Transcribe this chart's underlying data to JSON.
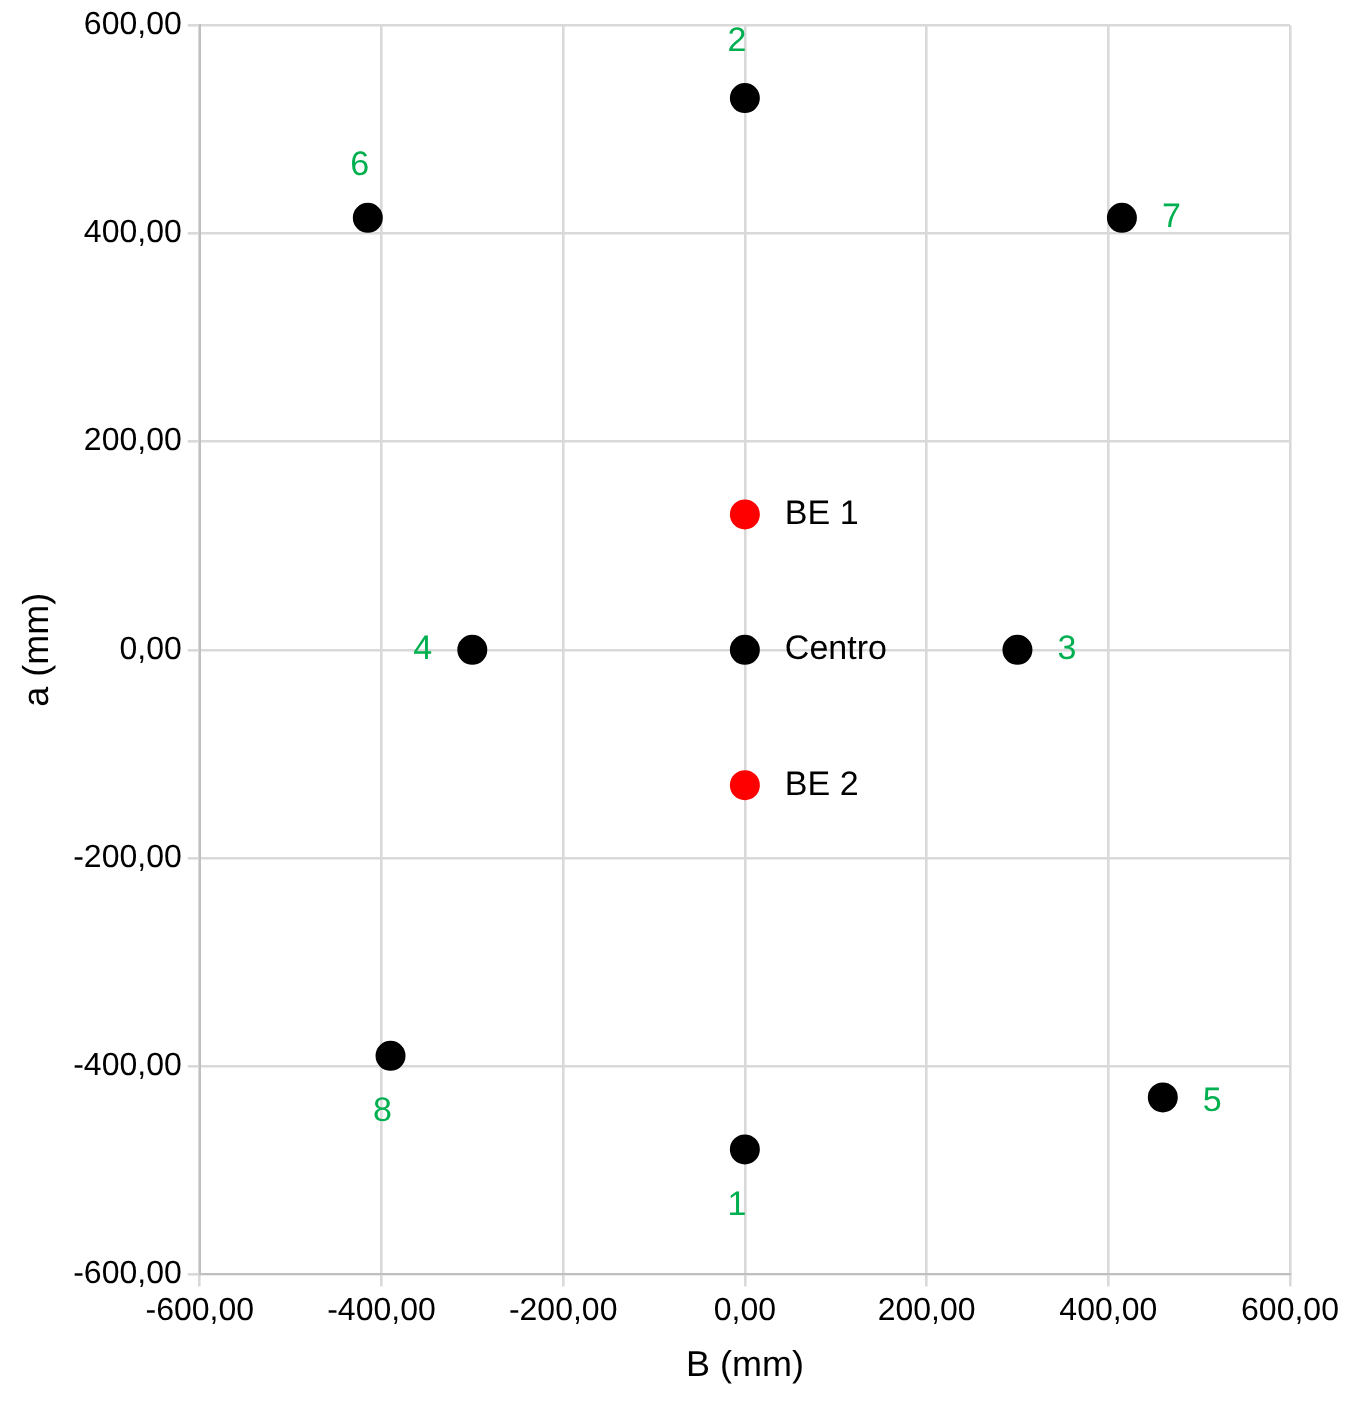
{
  "chart_data": {
    "type": "scatter",
    "xlabel": "B (mm)",
    "ylabel": "a (mm)",
    "xlim": [
      -600,
      600
    ],
    "ylim": [
      -600,
      600
    ],
    "xticks": [
      {
        "value": -600,
        "label": "-600,00"
      },
      {
        "value": -400,
        "label": "-400,00"
      },
      {
        "value": -200,
        "label": "-200,00"
      },
      {
        "value": 0,
        "label": "0,00"
      },
      {
        "value": 200,
        "label": "200,00"
      },
      {
        "value": 400,
        "label": "400,00"
      },
      {
        "value": 600,
        "label": "600,00"
      }
    ],
    "yticks": [
      {
        "value": -600,
        "label": "-600,00"
      },
      {
        "value": -400,
        "label": "-400,00"
      },
      {
        "value": -200,
        "label": "-200,00"
      },
      {
        "value": 0,
        "label": "0,00"
      },
      {
        "value": 200,
        "label": "200,00"
      },
      {
        "value": 400,
        "label": "400,00"
      },
      {
        "value": 600,
        "label": "600,00"
      }
    ],
    "grid": true,
    "legend": false,
    "marker": "circle",
    "series": [
      {
        "color": "#000000",
        "x": [
          0,
          0,
          300,
          -300,
          460,
          -415,
          415,
          -390,
          0
        ],
        "values": [
          -480,
          530,
          0,
          0,
          -430,
          415,
          415,
          -390,
          0
        ]
      },
      {
        "color": "#ff0000",
        "x": [
          0,
          0
        ],
        "values": [
          130,
          -130
        ]
      }
    ],
    "annotations": [
      {
        "text": "1",
        "x": 0,
        "y": -480
      },
      {
        "text": "2",
        "x": 0,
        "y": 530
      },
      {
        "text": "3",
        "x": 300,
        "y": 0
      },
      {
        "text": "4",
        "x": -300,
        "y": 0
      },
      {
        "text": "5",
        "x": 460,
        "y": -430
      },
      {
        "text": "6",
        "x": -415,
        "y": 415
      },
      {
        "text": "7",
        "x": 415,
        "y": 415
      },
      {
        "text": "8",
        "x": -390,
        "y": -390
      },
      {
        "text": "Centro",
        "x": 0,
        "y": 0
      },
      {
        "text": "BE 1",
        "x": 0,
        "y": 130
      },
      {
        "text": "BE 2",
        "x": 0,
        "y": -130
      }
    ]
  }
}
